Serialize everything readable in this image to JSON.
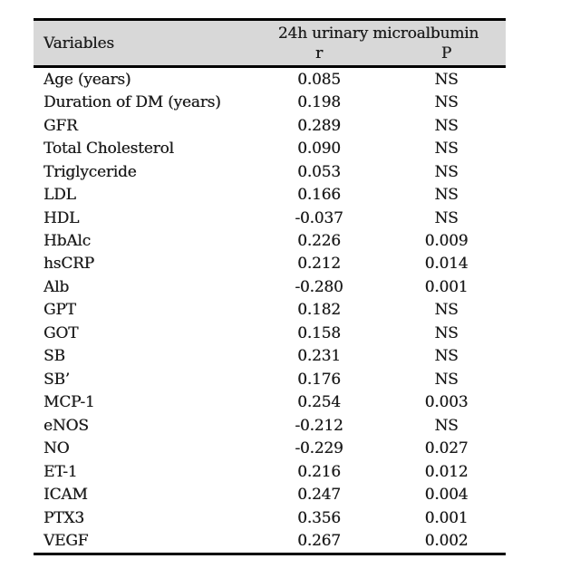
{
  "colors": {
    "header_bg": "#d8d8d8",
    "border": "#000000",
    "text": "#1c1c1c"
  },
  "table": {
    "header": {
      "variables_label": "Variables",
      "group_label": "24h urinary microalbumin",
      "col_r_label": "r",
      "col_p_label": "P"
    },
    "rows": [
      {
        "variable": "Age (years)",
        "r": "0.085",
        "p": "NS"
      },
      {
        "variable": "Duration of DM (years)",
        "r": "0.198",
        "p": "NS"
      },
      {
        "variable": "GFR",
        "r": "0.289",
        "p": "NS"
      },
      {
        "variable": "Total Cholesterol",
        "r": "0.090",
        "p": "NS"
      },
      {
        "variable": "Triglyceride",
        "r": "0.053",
        "p": "NS"
      },
      {
        "variable": "LDL",
        "r": "0.166",
        "p": "NS"
      },
      {
        "variable": "HDL",
        "r": "-0.037",
        "p": "NS"
      },
      {
        "variable": "HbAlc",
        "r": "0.226",
        "p": "0.009"
      },
      {
        "variable": "hsCRP",
        "r": "0.212",
        "p": "0.014"
      },
      {
        "variable": "Alb",
        "r": "-0.280",
        "p": "0.001"
      },
      {
        "variable": "GPT",
        "r": "0.182",
        "p": "NS"
      },
      {
        "variable": "GOT",
        "r": "0.158",
        "p": "NS"
      },
      {
        "variable": "SB",
        "r": "0.231",
        "p": "NS"
      },
      {
        "variable": "SB’",
        "r": "0.176",
        "p": "NS"
      },
      {
        "variable": "MCP-1",
        "r": "0.254",
        "p": "0.003"
      },
      {
        "variable": "eNOS",
        "r": "-0.212",
        "p": "NS"
      },
      {
        "variable": "NO",
        "r": "-0.229",
        "p": "0.027"
      },
      {
        "variable": "ET-1",
        "r": "0.216",
        "p": "0.012"
      },
      {
        "variable": "ICAM",
        "r": "0.247",
        "p": "0.004"
      },
      {
        "variable": "PTX3",
        "r": "0.356",
        "p": "0.001"
      },
      {
        "variable": "VEGF",
        "r": "0.267",
        "p": "0.002"
      }
    ]
  }
}
